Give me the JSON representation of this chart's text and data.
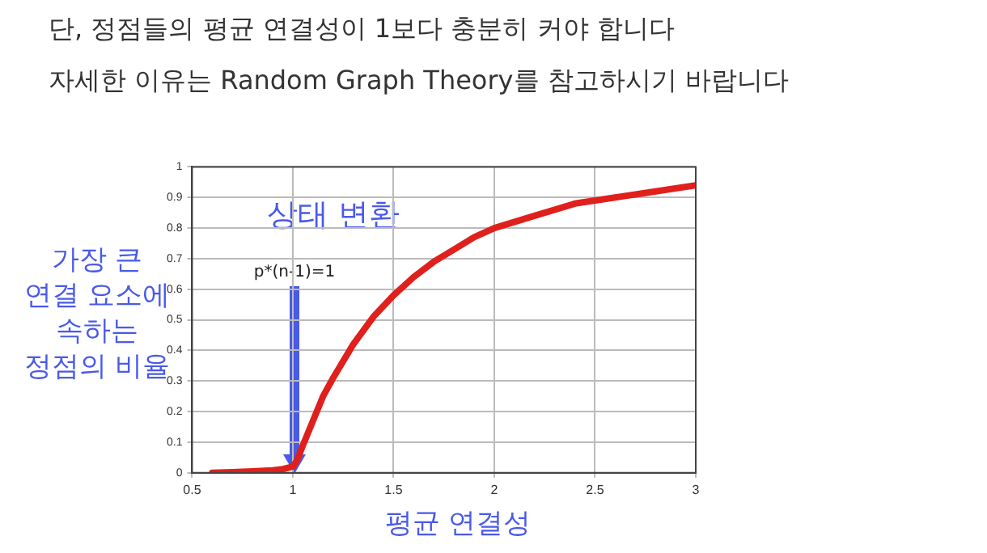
{
  "chart_data": {
    "type": "line",
    "title": "단, 정점들의 평균 연결성이 1보다 충분히 커야 합니다",
    "subtitle": "자세한 이유는 Random Graph Theory를 참고하시기 바랍니다",
    "xlabel": "평균 연결성",
    "ylabel": "가장 큰\n연결 요소에\n속하는\n정점의 비율",
    "annotations": [
      "상태 변환",
      "p*(n-1)=1"
    ],
    "series": [
      {
        "color": "#e0201c",
        "x": [
          0.6,
          0.7,
          0.8,
          0.9,
          0.95,
          1.0,
          1.02,
          1.05,
          1.1,
          1.15,
          1.2,
          1.3,
          1.4,
          1.5,
          1.6,
          1.7,
          1.8,
          1.9,
          2.0,
          2.2,
          2.4,
          2.6,
          2.8,
          3.0
        ],
        "values": [
          0.0,
          0.002,
          0.005,
          0.008,
          0.012,
          0.02,
          0.04,
          0.09,
          0.17,
          0.25,
          0.31,
          0.42,
          0.51,
          0.58,
          0.64,
          0.69,
          0.73,
          0.77,
          0.8,
          0.84,
          0.88,
          0.9,
          0.92,
          0.94
        ]
      }
    ],
    "xlim": [
      0.5,
      3
    ],
    "xticks": [
      0.5,
      1,
      1.5,
      2,
      2.5,
      3
    ],
    "ylim": [
      0,
      1
    ],
    "yticks": [
      0,
      0.1,
      0.2,
      0.3,
      0.4,
      0.5,
      0.6,
      0.7,
      0.8,
      0.9,
      1
    ],
    "grid": true,
    "legend": false,
    "marker": "none",
    "line_style": "solid"
  }
}
